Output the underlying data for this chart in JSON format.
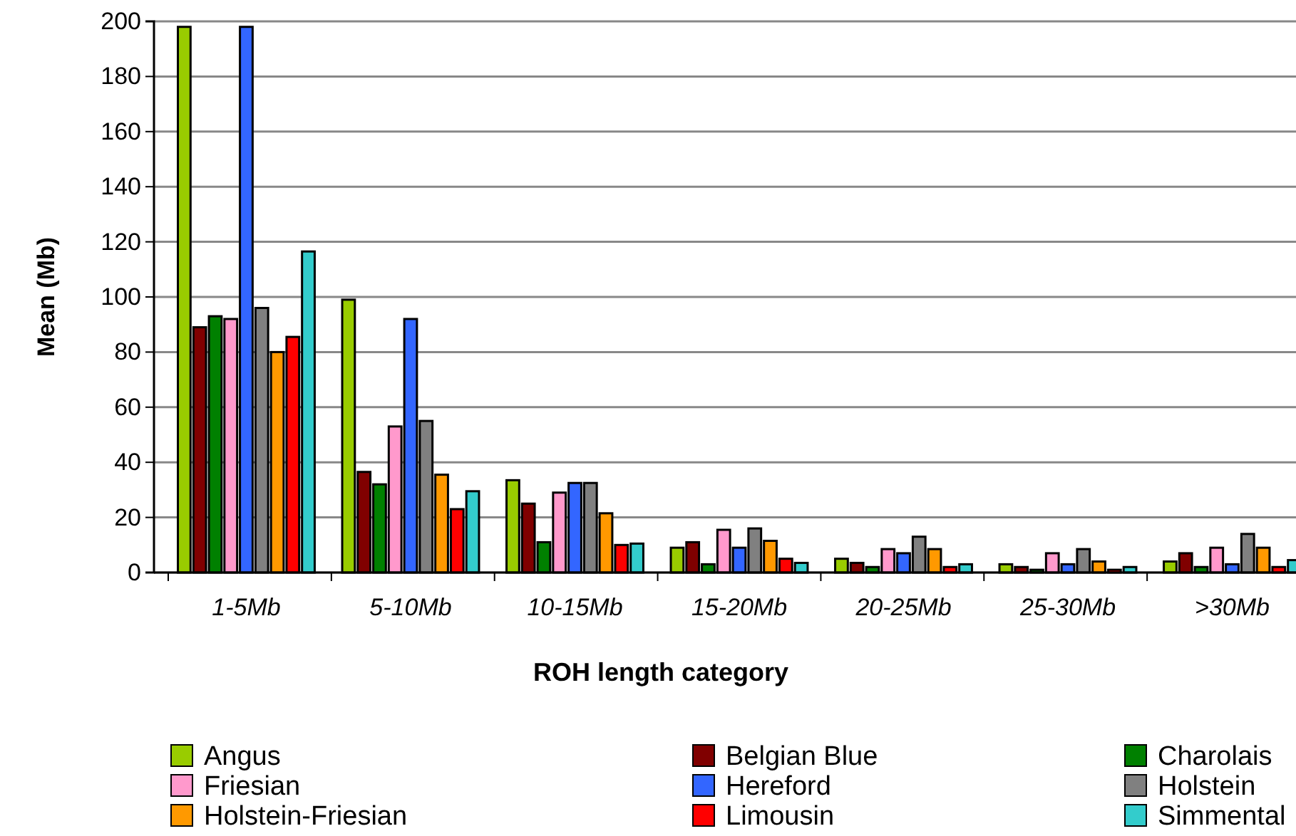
{
  "chart_data": {
    "type": "bar",
    "xlabel": "ROH length category",
    "ylabel": "Mean (Mb)",
    "categories": [
      "1-5Mb",
      "5-10Mb",
      "10-15Mb",
      "15-20Mb",
      "20-25Mb",
      "25-30Mb",
      ">30Mb"
    ],
    "ylim": [
      0,
      200
    ],
    "yticks": [
      0,
      20,
      40,
      60,
      80,
      100,
      120,
      140,
      160,
      180,
      200
    ],
    "grid": "y",
    "legend": "bottom",
    "series": [
      {
        "name": "Angus",
        "color": "#99cc00",
        "values": [
          198,
          99,
          33.5,
          9,
          5,
          3,
          4
        ]
      },
      {
        "name": "Belgian Blue",
        "color": "#800000",
        "values": [
          89,
          36.5,
          25,
          11,
          3.5,
          2,
          7
        ]
      },
      {
        "name": "Charolais",
        "color": "#008000",
        "values": [
          93,
          32,
          11,
          3,
          2,
          1,
          2
        ]
      },
      {
        "name": "Friesian",
        "color": "#ff99cc",
        "values": [
          92,
          53,
          29,
          15.5,
          8.5,
          7,
          9
        ]
      },
      {
        "name": "Hereford",
        "color": "#3366ff",
        "values": [
          198,
          92,
          32.5,
          9,
          7,
          3,
          3
        ]
      },
      {
        "name": "Holstein",
        "color": "#808080",
        "values": [
          96,
          55,
          32.5,
          16,
          13,
          8.5,
          14
        ]
      },
      {
        "name": "Holstein-Friesian",
        "color": "#ff9900",
        "values": [
          80,
          35.5,
          21.5,
          11.5,
          8.5,
          4,
          9
        ]
      },
      {
        "name": "Limousin",
        "color": "#ff0000",
        "values": [
          85.5,
          23,
          10,
          5,
          2,
          1,
          2
        ]
      },
      {
        "name": "Simmental",
        "color": "#33cccc",
        "values": [
          116.5,
          29.5,
          10.5,
          3.5,
          3,
          2,
          4.5
        ]
      }
    ]
  }
}
